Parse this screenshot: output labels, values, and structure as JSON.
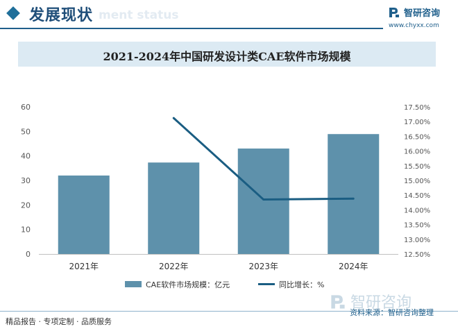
{
  "header": {
    "section_title": "发展现状",
    "section_subtitle": "ment status",
    "brand_name": "智研咨询",
    "brand_url": "www.chyxx.com"
  },
  "colors": {
    "bar": "#5e91ab",
    "line": "#1a5d82",
    "accent": "#1f5f8b",
    "band": "#dceaf3"
  },
  "chart_data": {
    "type": "bar",
    "title": "2021-2024年中国研发设计类CAE软件市场规模",
    "categories": [
      "2021年",
      "2022年",
      "2023年",
      "2024年"
    ],
    "series": [
      {
        "name": "CAE软件市场规模：亿元",
        "type": "bar",
        "axis": "left",
        "values": [
          32.0,
          37.3,
          43.0,
          48.9
        ]
      },
      {
        "name": "同比增长：%",
        "type": "line",
        "axis": "right",
        "values": [
          null,
          17.12,
          14.35,
          14.38
        ]
      }
    ],
    "y_left": {
      "min": 0,
      "max": 60,
      "ticks": [
        "0",
        "10",
        "20",
        "30",
        "40",
        "50",
        "60"
      ]
    },
    "y_right": {
      "min": 12.5,
      "max": 17.5,
      "ticks": [
        "12.50%",
        "13.00%",
        "13.50%",
        "14.00%",
        "14.50%",
        "15.00%",
        "15.50%",
        "16.00%",
        "16.50%",
        "17.00%",
        "17.50%"
      ]
    },
    "grid": false,
    "legend_position": "bottom"
  },
  "footer": {
    "left_text": "精品报告 · 专项定制 · 品质服务",
    "source_brand": "智研咨询",
    "source_text": "资料来源：智研咨询整理"
  }
}
